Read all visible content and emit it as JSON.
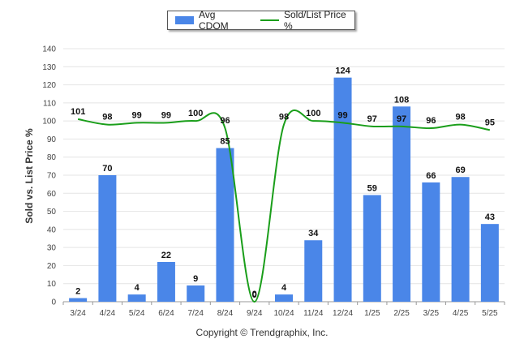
{
  "chart_data": {
    "type": "bar",
    "categories": [
      "3/24",
      "4/24",
      "5/24",
      "6/24",
      "7/24",
      "8/24",
      "9/24",
      "10/24",
      "11/24",
      "12/24",
      "1/25",
      "2/25",
      "3/25",
      "4/25",
      "5/25"
    ],
    "series": [
      {
        "name": "Avg CDOM",
        "type": "bar",
        "color": "#4a86e8",
        "values": [
          2,
          70,
          4,
          22,
          9,
          85,
          0,
          4,
          34,
          124,
          59,
          108,
          66,
          69,
          43
        ]
      },
      {
        "name": "Sold/List Price %",
        "type": "line",
        "color": "#1a9e1a",
        "values": [
          101,
          98,
          99,
          99,
          100,
          96,
          0,
          98,
          100,
          99,
          97,
          97,
          96,
          98,
          95
        ]
      }
    ],
    "ylabel": "Sold vs. List Price %",
    "ylim": [
      0,
      140
    ],
    "yticks": [
      0,
      10,
      20,
      30,
      40,
      50,
      60,
      70,
      80,
      90,
      100,
      110,
      120,
      130,
      140
    ],
    "grid": true,
    "legend": "top-center"
  },
  "footer": {
    "copyright": "Copyright © Trendgraphix, Inc."
  }
}
